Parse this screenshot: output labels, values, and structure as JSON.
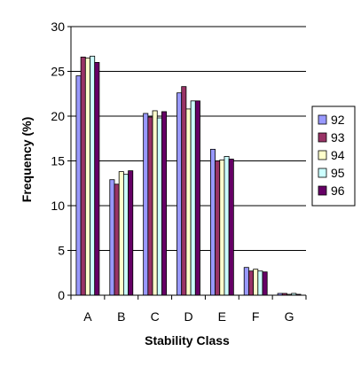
{
  "chart_data": {
    "type": "bar",
    "title": "",
    "xlabel": "Stability Class",
    "ylabel": "Frequency (%)",
    "ylim": [
      0,
      30
    ],
    "yticks": [
      0,
      5,
      10,
      15,
      20,
      25,
      30
    ],
    "grid": "horizontal",
    "legend_position": "right",
    "categories": [
      "A",
      "B",
      "C",
      "D",
      "E",
      "F",
      "G"
    ],
    "series": [
      {
        "name": "92",
        "color": "#9999FF",
        "values": [
          24.5,
          12.9,
          20.3,
          22.6,
          16.3,
          3.1,
          0.2
        ]
      },
      {
        "name": "93",
        "color": "#993366",
        "values": [
          26.6,
          12.4,
          19.9,
          23.3,
          15.0,
          2.7,
          0.2
        ]
      },
      {
        "name": "94",
        "color": "#FFFFCC",
        "values": [
          26.5,
          13.8,
          20.6,
          20.8,
          15.1,
          2.9,
          0.1
        ]
      },
      {
        "name": "95",
        "color": "#CCFFFF",
        "values": [
          26.7,
          13.5,
          19.8,
          21.7,
          15.5,
          2.7,
          0.2
        ]
      },
      {
        "name": "96",
        "color": "#660066",
        "values": [
          26.0,
          13.9,
          20.5,
          21.7,
          15.2,
          2.6,
          0.1
        ]
      }
    ]
  }
}
